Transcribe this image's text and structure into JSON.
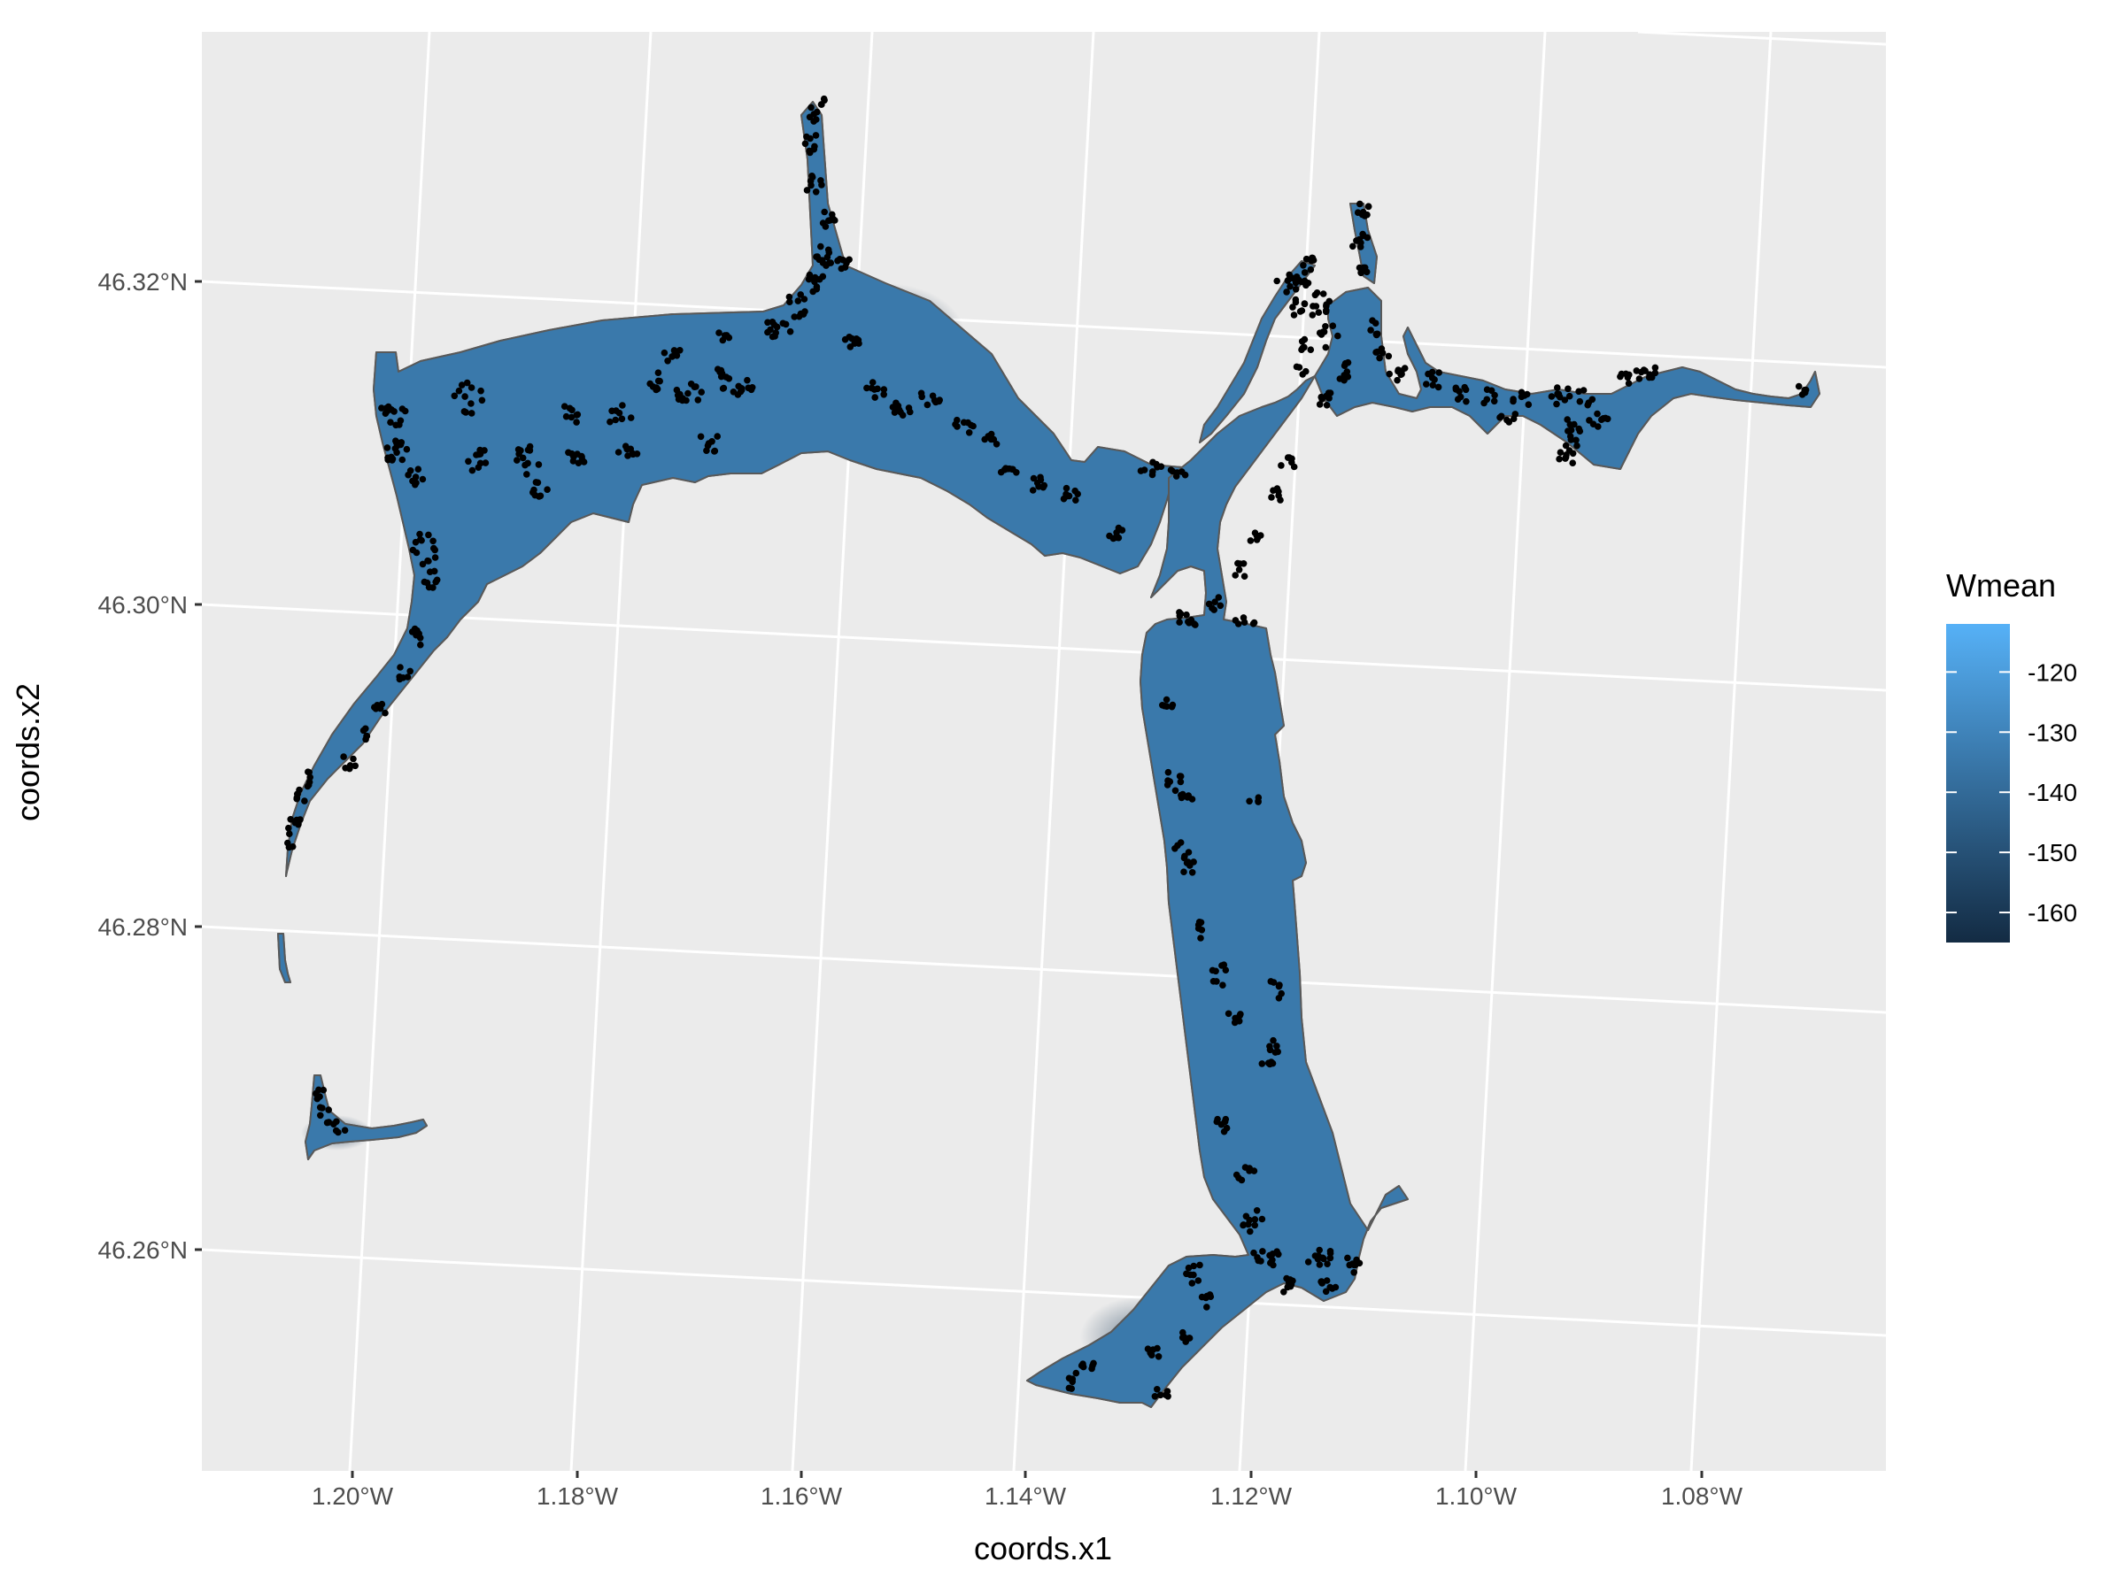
{
  "map": {
    "x_axis_title": "coords.x1",
    "y_axis_title": "coords.x2",
    "x_ticks": [
      "1.20°W",
      "1.18°W",
      "1.16°W",
      "1.14°W",
      "1.12°W",
      "1.10°W",
      "1.08°W"
    ],
    "y_ticks": [
      "46.32°N",
      "46.30°N",
      "46.28°N",
      "46.26°N"
    ],
    "panel_background": "#ebebeb",
    "gridline_color": "#ffffff",
    "point_color": "#000000",
    "outline_color": "#595959"
  },
  "legend": {
    "title": "Wmean",
    "labels": [
      "-120",
      "-130",
      "-140",
      "-150",
      "-160"
    ],
    "values": [
      -120,
      -130,
      -140,
      -150,
      -160
    ],
    "range": [
      -165,
      -112
    ],
    "color_high": "#56b1f7",
    "color_low": "#132b43"
  },
  "chart_data": {
    "type": "heatmap",
    "xlabel": "coords.x1",
    "ylabel": "coords.x2",
    "xlim": [
      -1.213,
      -1.063
    ],
    "ylim": [
      46.249,
      46.334
    ],
    "x_tick_values": [
      -1.2,
      -1.18,
      -1.16,
      -1.14,
      -1.12,
      -1.1,
      -1.08
    ],
    "y_tick_values": [
      46.32,
      46.3,
      46.28,
      46.26
    ],
    "fill_variable": "Wmean",
    "fill_range": [
      -165,
      -112
    ],
    "layers": [
      "gridded Wmean raster",
      "estuary outline",
      "observation points"
    ]
  }
}
